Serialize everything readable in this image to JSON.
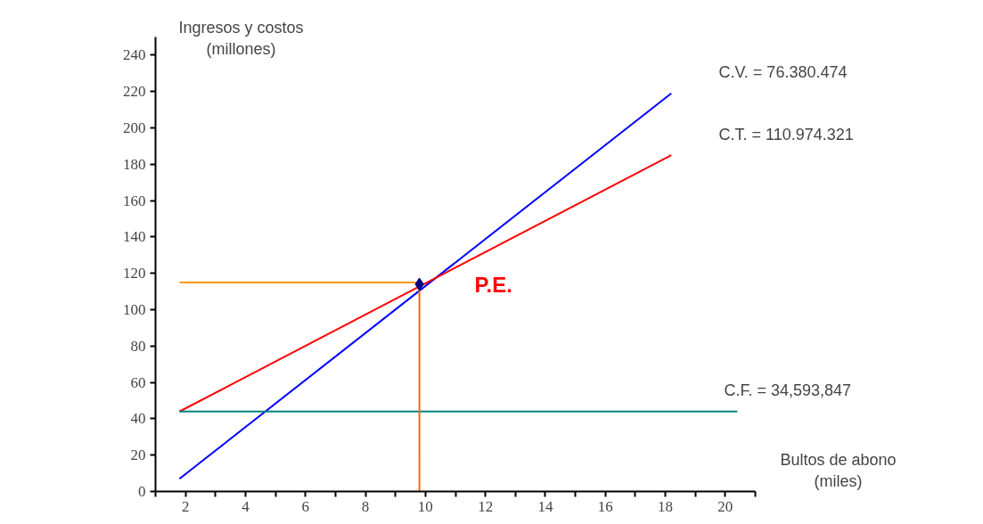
{
  "chart_data": {
    "type": "line",
    "ylabel": "Ingresos y costos\n(millones)",
    "xlabel": "Bultos de abono\n(miles)",
    "xlim": [
      1,
      21
    ],
    "ylim": [
      0,
      250
    ],
    "xticks": [
      {
        "value": 1,
        "label": null
      },
      2,
      {
        "value": 3,
        "label": null
      },
      4,
      {
        "value": 5,
        "label": null
      },
      6,
      {
        "value": 7,
        "label": null
      },
      8,
      {
        "value": 9,
        "label": null
      },
      10,
      {
        "value": 11,
        "label": null
      },
      12,
      {
        "value": 13,
        "label": null
      },
      14,
      {
        "value": 15,
        "label": null
      },
      16,
      {
        "value": 17,
        "label": null
      },
      18,
      {
        "value": 19,
        "label": null
      },
      20,
      {
        "value": 21,
        "label": null
      }
    ],
    "yticks": [
      0,
      20,
      40,
      60,
      80,
      100,
      120,
      140,
      160,
      180,
      200,
      220,
      240
    ],
    "grid": false,
    "marker": "none",
    "line_style": "solid",
    "series": [
      {
        "color": "#0000ff",
        "x": [
          1.8,
          18.2
        ],
        "values": [
          7,
          219
        ]
      },
      {
        "color": "#ff0000",
        "x": [
          1.8,
          18.2
        ],
        "values": [
          44,
          185
        ]
      },
      {
        "color": "#008080",
        "x": [
          1.8,
          20.4
        ],
        "values": [
          44,
          44
        ]
      },
      {
        "color": "#ff9900",
        "x": [
          1.8,
          9.8
        ],
        "values": [
          115,
          115
        ]
      },
      {
        "color": "#ff6600",
        "x": [
          9.8,
          9.8
        ],
        "values": [
          0,
          115
        ]
      },
      {
        "type": "scatter",
        "marker": "diamond",
        "color": "#000080",
        "x": [
          9.8
        ],
        "values": [
          114
        ]
      }
    ],
    "annotations": [
      "C.V. =   76.380.474",
      "C.T. =  110.974.321",
      "C.F. = 34,593,847",
      {
        "text": "P.E.",
        "x": 9.8,
        "y": 114
      }
    ]
  }
}
